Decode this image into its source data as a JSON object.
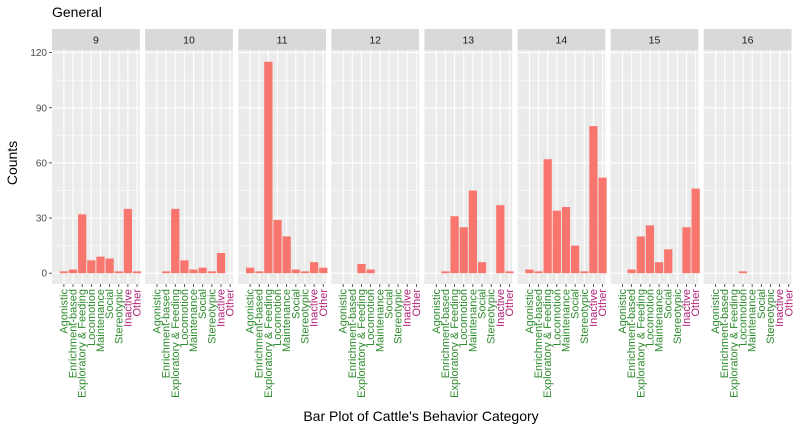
{
  "chart_data": {
    "type": "bar",
    "title": "General",
    "xlabel": "Bar Plot of Cattle's Behavior Category",
    "ylabel": "Counts",
    "ylim": [
      0,
      120
    ],
    "yticks": [
      0,
      30,
      60,
      90,
      120
    ],
    "grid": true,
    "bar_color": "#F8766D",
    "panel_background": "#EBEBEB",
    "strip_background": "#D9D9D9",
    "label_colors": {
      "green": "#2E8B2E",
      "magenta": "#B22278"
    },
    "categories": [
      {
        "name": "Agonistic",
        "color": "green"
      },
      {
        "name": "Enrichment-based",
        "color": "green"
      },
      {
        "name": "Exploratory & Feeding",
        "color": "green"
      },
      {
        "name": "Locomotion",
        "color": "green"
      },
      {
        "name": "Maintenance",
        "color": "green"
      },
      {
        "name": "Social",
        "color": "green"
      },
      {
        "name": "Stereotypic",
        "color": "green"
      },
      {
        "name": "Inactive",
        "color": "magenta"
      },
      {
        "name": "Other",
        "color": "magenta"
      }
    ],
    "panels": [
      {
        "label": "9",
        "values": [
          1,
          2,
          32,
          7,
          9,
          8,
          1,
          35,
          1
        ]
      },
      {
        "label": "10",
        "values": [
          0,
          1,
          35,
          7,
          2,
          3,
          1,
          11,
          0
        ]
      },
      {
        "label": "11",
        "values": [
          3,
          1,
          115,
          29,
          20,
          2,
          1,
          6,
          3
        ]
      },
      {
        "label": "12",
        "values": [
          0,
          0,
          5,
          2,
          0,
          0,
          0,
          0,
          0
        ]
      },
      {
        "label": "13",
        "values": [
          0,
          1,
          31,
          25,
          45,
          6,
          0,
          37,
          1
        ]
      },
      {
        "label": "14",
        "values": [
          2,
          1,
          62,
          34,
          36,
          15,
          1,
          80,
          52
        ]
      },
      {
        "label": "15",
        "values": [
          0,
          2,
          20,
          26,
          6,
          13,
          0,
          25,
          46
        ]
      },
      {
        "label": "16",
        "values": [
          0,
          0,
          0,
          1,
          0,
          0,
          0,
          0,
          0
        ]
      }
    ]
  }
}
